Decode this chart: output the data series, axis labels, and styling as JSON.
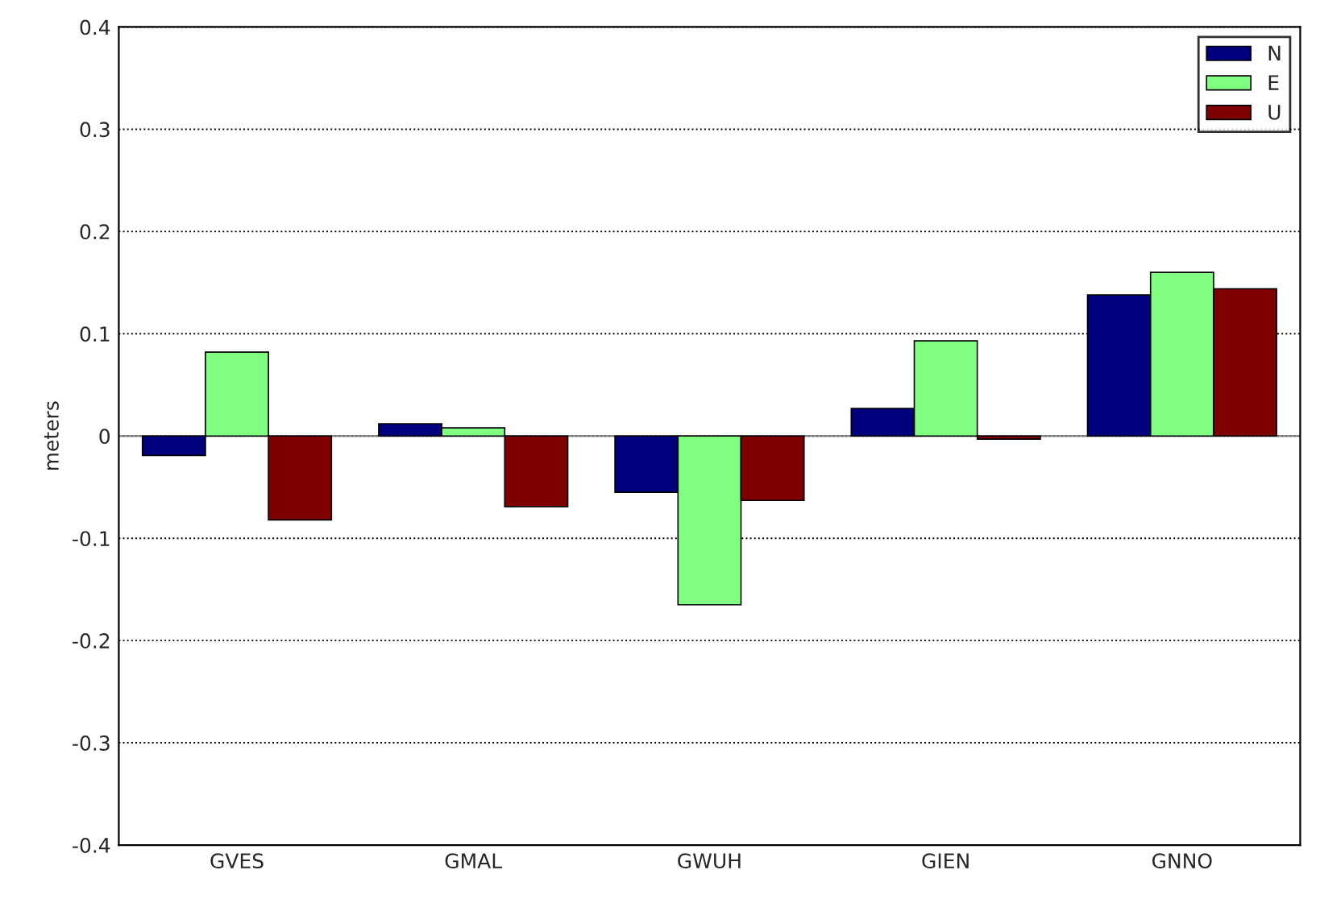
{
  "chart_data": {
    "type": "bar",
    "ylabel": "meters",
    "categories": [
      "GVES",
      "GMAL",
      "GWUH",
      "GIEN",
      "GNNO"
    ],
    "series": [
      {
        "name": "N",
        "color": "#00007f",
        "values": [
          -0.019,
          0.012,
          -0.055,
          0.027,
          0.138
        ]
      },
      {
        "name": "E",
        "color": "#80ff80",
        "values": [
          0.082,
          0.008,
          -0.165,
          0.093,
          0.16
        ]
      },
      {
        "name": "U",
        "color": "#7f0000",
        "values": [
          -0.082,
          -0.069,
          -0.063,
          -0.003,
          0.144
        ]
      }
    ],
    "ylim": [
      -0.4,
      0.4
    ],
    "yticks": [
      -0.4,
      -0.3,
      -0.2,
      -0.1,
      0,
      0.1,
      0.2,
      0.3,
      0.4
    ],
    "grid": "y",
    "legend": "top right"
  }
}
